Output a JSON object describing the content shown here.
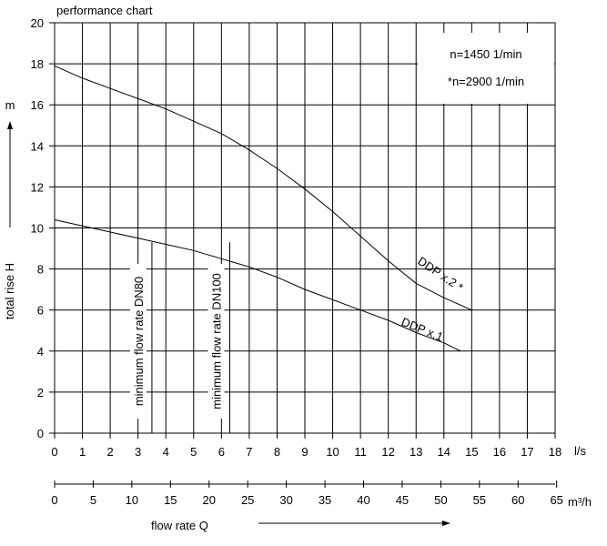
{
  "chart_data": {
    "type": "line",
    "title": "performance chart",
    "xlabel": "flow rate Q",
    "ylabel": "total rise H",
    "y_unit": "m",
    "x_unit": "l/s",
    "x2_unit": "m³/h",
    "xlim": [
      0,
      18
    ],
    "ylim": [
      0,
      20
    ],
    "x_ticks": [
      0,
      1,
      2,
      3,
      4,
      5,
      6,
      7,
      8,
      9,
      10,
      11,
      12,
      13,
      14,
      15,
      16,
      17,
      18
    ],
    "y_ticks": [
      0,
      2,
      4,
      6,
      8,
      10,
      12,
      14,
      16,
      18,
      20
    ],
    "x2_ticks": [
      0,
      5,
      10,
      15,
      20,
      25,
      30,
      35,
      40,
      45,
      50,
      55,
      60,
      65
    ],
    "grid": true,
    "info_lines": [
      "n=1450 1/min",
      "*n=2900 1/min"
    ],
    "series": [
      {
        "name": "DDP x.2 *",
        "x": [
          0,
          1,
          2,
          3,
          4,
          5,
          6,
          7,
          8,
          9,
          10,
          11,
          12,
          13,
          14,
          15
        ],
        "y": [
          17.9,
          17.3,
          16.8,
          16.3,
          15.8,
          15.2,
          14.6,
          13.8,
          12.9,
          11.9,
          10.8,
          9.6,
          8.4,
          7.3,
          6.6,
          6.0
        ]
      },
      {
        "name": "DDP x.1",
        "x": [
          0,
          1,
          2,
          3,
          4,
          5,
          6,
          7,
          8,
          9,
          10,
          11,
          12,
          13,
          14,
          14.6
        ],
        "y": [
          10.4,
          10.1,
          9.8,
          9.5,
          9.2,
          8.9,
          8.5,
          8.1,
          7.6,
          7.0,
          6.5,
          6.0,
          5.5,
          4.9,
          4.4,
          4.0
        ]
      }
    ],
    "annotations": [
      {
        "text": "minimum flow rate DN80",
        "x": 3.5
      },
      {
        "text": "minimum flow rate DN100",
        "x": 6.3
      }
    ]
  }
}
